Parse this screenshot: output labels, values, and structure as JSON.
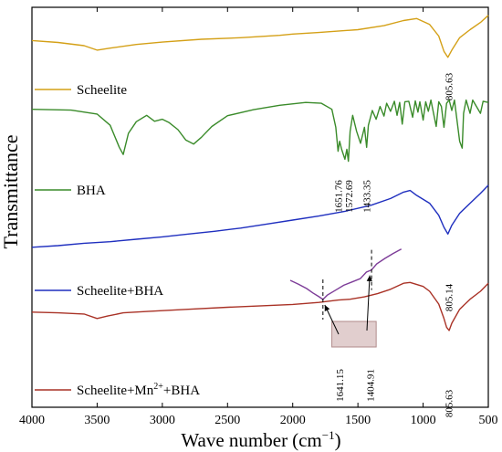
{
  "chart_data": {
    "type": "line",
    "xlabel": "Wave number",
    "xlabel_unit": "(cm",
    "xlabel_unit_sup": "−1",
    "xlabel_unit_close": ")",
    "ylabel": "Transmittance",
    "xlim": [
      4000,
      500
    ],
    "x_reversed": true,
    "x_ticks": [
      "4000",
      "3500",
      "3000",
      "2500",
      "2000",
      "1500",
      "1000",
      "500"
    ],
    "y_ticks": "none",
    "legend_placement": "left, under each trace",
    "series": [
      {
        "name": "Scheelite",
        "name_parts": [
          "Scheelite"
        ],
        "color": "#d4a017",
        "offset": 0.92,
        "points": [
          [
            4000,
            0.917
          ],
          [
            3800,
            0.912
          ],
          [
            3600,
            0.904
          ],
          [
            3500,
            0.893
          ],
          [
            3400,
            0.898
          ],
          [
            3200,
            0.907
          ],
          [
            3000,
            0.913
          ],
          [
            2700,
            0.92
          ],
          [
            2400,
            0.924
          ],
          [
            2100,
            0.93
          ],
          [
            2000,
            0.933
          ],
          [
            1800,
            0.937
          ],
          [
            1500,
            0.944
          ],
          [
            1300,
            0.954
          ],
          [
            1150,
            0.967
          ],
          [
            1050,
            0.972
          ],
          [
            950,
            0.957
          ],
          [
            880,
            0.928
          ],
          [
            840,
            0.89
          ],
          [
            810,
            0.875
          ],
          [
            780,
            0.893
          ],
          [
            720,
            0.924
          ],
          [
            640,
            0.944
          ],
          [
            560,
            0.962
          ],
          [
            500,
            0.98
          ]
        ],
        "peak_labels": [
          {
            "x": 805.63,
            "text": "805.63"
          }
        ]
      },
      {
        "name": "BHA",
        "name_parts": [
          "BHA"
        ],
        "color": "#3a8b2a",
        "offset": 0.7,
        "points": [
          [
            4000,
            0.745
          ],
          [
            3700,
            0.743
          ],
          [
            3500,
            0.733
          ],
          [
            3400,
            0.705
          ],
          [
            3330,
            0.65
          ],
          [
            3300,
            0.632
          ],
          [
            3260,
            0.685
          ],
          [
            3200,
            0.714
          ],
          [
            3120,
            0.73
          ],
          [
            3060,
            0.715
          ],
          [
            3000,
            0.72
          ],
          [
            2950,
            0.712
          ],
          [
            2880,
            0.694
          ],
          [
            2820,
            0.668
          ],
          [
            2760,
            0.658
          ],
          [
            2700,
            0.675
          ],
          [
            2620,
            0.702
          ],
          [
            2500,
            0.729
          ],
          [
            2300,
            0.744
          ],
          [
            2100,
            0.755
          ],
          [
            1900,
            0.762
          ],
          [
            1780,
            0.76
          ],
          [
            1700,
            0.745
          ],
          [
            1670,
            0.7
          ],
          [
            1652,
            0.64
          ],
          [
            1640,
            0.665
          ],
          [
            1625,
            0.645
          ],
          [
            1600,
            0.62
          ],
          [
            1585,
            0.645
          ],
          [
            1573,
            0.615
          ],
          [
            1560,
            0.69
          ],
          [
            1540,
            0.73
          ],
          [
            1510,
            0.69
          ],
          [
            1480,
            0.66
          ],
          [
            1450,
            0.7
          ],
          [
            1433,
            0.65
          ],
          [
            1420,
            0.705
          ],
          [
            1390,
            0.742
          ],
          [
            1360,
            0.72
          ],
          [
            1330,
            0.752
          ],
          [
            1300,
            0.728
          ],
          [
            1280,
            0.76
          ],
          [
            1250,
            0.74
          ],
          [
            1220,
            0.765
          ],
          [
            1200,
            0.73
          ],
          [
            1180,
            0.762
          ],
          [
            1160,
            0.708
          ],
          [
            1140,
            0.764
          ],
          [
            1110,
            0.765
          ],
          [
            1080,
            0.725
          ],
          [
            1060,
            0.766
          ],
          [
            1040,
            0.738
          ],
          [
            1025,
            0.764
          ],
          [
            1000,
            0.718
          ],
          [
            980,
            0.764
          ],
          [
            960,
            0.74
          ],
          [
            940,
            0.768
          ],
          [
            900,
            0.702
          ],
          [
            880,
            0.764
          ],
          [
            860,
            0.752
          ],
          [
            840,
            0.7
          ],
          [
            820,
            0.76
          ],
          [
            800,
            0.768
          ],
          [
            780,
            0.742
          ],
          [
            760,
            0.768
          ],
          [
            720,
            0.665
          ],
          [
            700,
            0.648
          ],
          [
            690,
            0.735
          ],
          [
            670,
            0.768
          ],
          [
            640,
            0.735
          ],
          [
            620,
            0.768
          ],
          [
            560,
            0.735
          ],
          [
            540,
            0.765
          ],
          [
            500,
            0.762
          ]
        ],
        "peak_labels": [
          {
            "x": 1651.76,
            "text": "1651.76"
          },
          {
            "x": 1572.69,
            "text": "1572.69"
          },
          {
            "x": 1433.35,
            "text": "1433.35"
          }
        ]
      },
      {
        "name": "Scheelite+BHA",
        "name_parts": [
          "Scheelite+BHA"
        ],
        "color": "#1f2fbf",
        "offset": 0.35,
        "points": [
          [
            4000,
            0.4
          ],
          [
            3800,
            0.404
          ],
          [
            3600,
            0.41
          ],
          [
            3400,
            0.414
          ],
          [
            3200,
            0.42
          ],
          [
            3000,
            0.426
          ],
          [
            2800,
            0.433
          ],
          [
            2600,
            0.44
          ],
          [
            2400,
            0.448
          ],
          [
            2200,
            0.458
          ],
          [
            2000,
            0.468
          ],
          [
            1800,
            0.478
          ],
          [
            1600,
            0.49
          ],
          [
            1400,
            0.505
          ],
          [
            1250,
            0.522
          ],
          [
            1150,
            0.538
          ],
          [
            1100,
            0.542
          ],
          [
            1050,
            0.53
          ],
          [
            950,
            0.51
          ],
          [
            880,
            0.48
          ],
          [
            840,
            0.45
          ],
          [
            810,
            0.433
          ],
          [
            780,
            0.455
          ],
          [
            720,
            0.485
          ],
          [
            640,
            0.51
          ],
          [
            560,
            0.535
          ],
          [
            500,
            0.555
          ]
        ],
        "peak_labels": [
          {
            "x": 805.14,
            "text": "805.14"
          }
        ]
      },
      {
        "name": "Scheelite+Mn2++BHA",
        "name_parts": [
          "Scheelite+Mn",
          "2+",
          "+BHA"
        ],
        "color": "#a93226",
        "offset": 0.0,
        "points": [
          [
            4000,
            0.238
          ],
          [
            3800,
            0.236
          ],
          [
            3600,
            0.233
          ],
          [
            3500,
            0.222
          ],
          [
            3420,
            0.228
          ],
          [
            3300,
            0.236
          ],
          [
            3100,
            0.24
          ],
          [
            2800,
            0.245
          ],
          [
            2500,
            0.25
          ],
          [
            2200,
            0.254
          ],
          [
            2000,
            0.257
          ],
          [
            1800,
            0.262
          ],
          [
            1650,
            0.268
          ],
          [
            1560,
            0.27
          ],
          [
            1450,
            0.276
          ],
          [
            1350,
            0.284
          ],
          [
            1250,
            0.295
          ],
          [
            1150,
            0.31
          ],
          [
            1100,
            0.312
          ],
          [
            1000,
            0.302
          ],
          [
            950,
            0.29
          ],
          [
            880,
            0.258
          ],
          [
            840,
            0.222
          ],
          [
            820,
            0.2
          ],
          [
            800,
            0.192
          ],
          [
            780,
            0.21
          ],
          [
            720,
            0.245
          ],
          [
            640,
            0.27
          ],
          [
            560,
            0.29
          ],
          [
            500,
            0.31
          ]
        ],
        "peak_labels": [
          {
            "x": 1641.15,
            "text": "1641.15"
          },
          {
            "x": 1404.91,
            "text": "1404.91"
          },
          {
            "x": 805.63,
            "text": "805.63"
          }
        ]
      }
    ],
    "inset": {
      "color": "#7d3c98",
      "x_range": [
        1800,
        1250
      ],
      "points": [
        [
          1800,
          0.455
        ],
        [
          1760,
          0.448
        ],
        [
          1720,
          0.44
        ],
        [
          1690,
          0.432
        ],
        [
          1660,
          0.425
        ],
        [
          1641,
          0.42
        ],
        [
          1620,
          0.428
        ],
        [
          1580,
          0.437
        ],
        [
          1540,
          0.446
        ],
        [
          1500,
          0.452
        ],
        [
          1460,
          0.458
        ],
        [
          1430,
          0.47
        ],
        [
          1405,
          0.474
        ],
        [
          1380,
          0.485
        ],
        [
          1340,
          0.495
        ],
        [
          1300,
          0.504
        ],
        [
          1260,
          0.512
        ]
      ],
      "markers": [
        1641.15,
        1404.91
      ],
      "highlight_range": [
        1700,
        1360
      ]
    }
  },
  "colors": {
    "axis": "#000000",
    "inset_box": "#c9a5a5"
  }
}
